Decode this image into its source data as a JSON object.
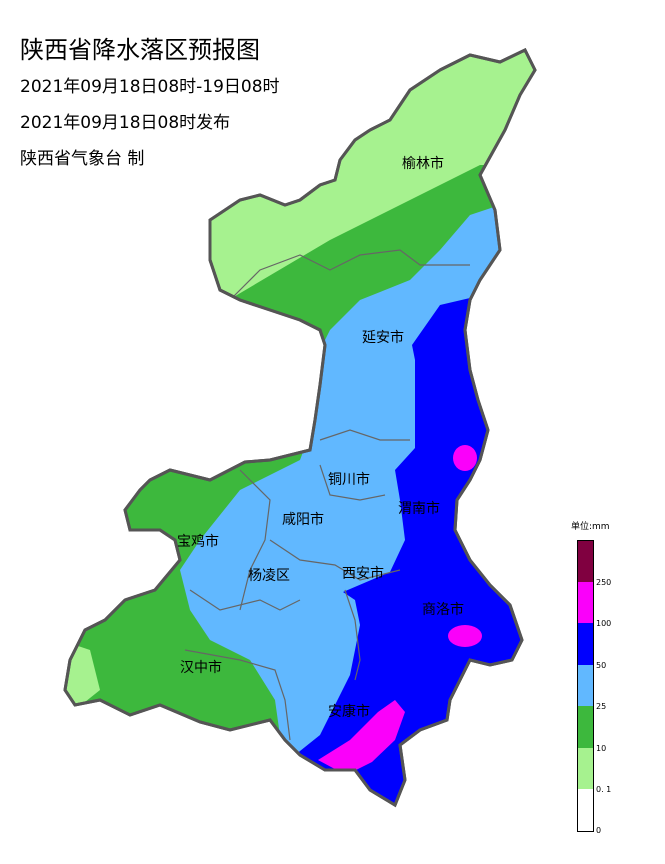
{
  "header": {
    "title": "陕西省降水落区预报图",
    "valid_period": "2021年09月18日08时-19日08时",
    "issued": "2021年09月18日08时发布",
    "producer": "陕西省气象台 制"
  },
  "cities": [
    "榆林市",
    "延安市",
    "铜川市",
    "渭南市",
    "咸阳市",
    "宝鸡市",
    "杨凌区",
    "西安市",
    "商洛市",
    "汉中市",
    "安康市"
  ],
  "legend": {
    "unit": "单位:mm",
    "levels": [
      {
        "label": "0",
        "color": "#ffffff"
      },
      {
        "label": "0.1",
        "color": "#a6f28f"
      },
      {
        "label": "10",
        "color": "#3db83d"
      },
      {
        "label": "25",
        "color": "#61b8ff"
      },
      {
        "label": "50",
        "color": "#0000fe"
      },
      {
        "label": "100",
        "color": "#fa00fa"
      },
      {
        "label": "250",
        "color": "#800040"
      }
    ],
    "labels_bottom_to_top": [
      "0",
      "0. 1",
      "10",
      "25",
      "50",
      "100",
      "250"
    ]
  }
}
